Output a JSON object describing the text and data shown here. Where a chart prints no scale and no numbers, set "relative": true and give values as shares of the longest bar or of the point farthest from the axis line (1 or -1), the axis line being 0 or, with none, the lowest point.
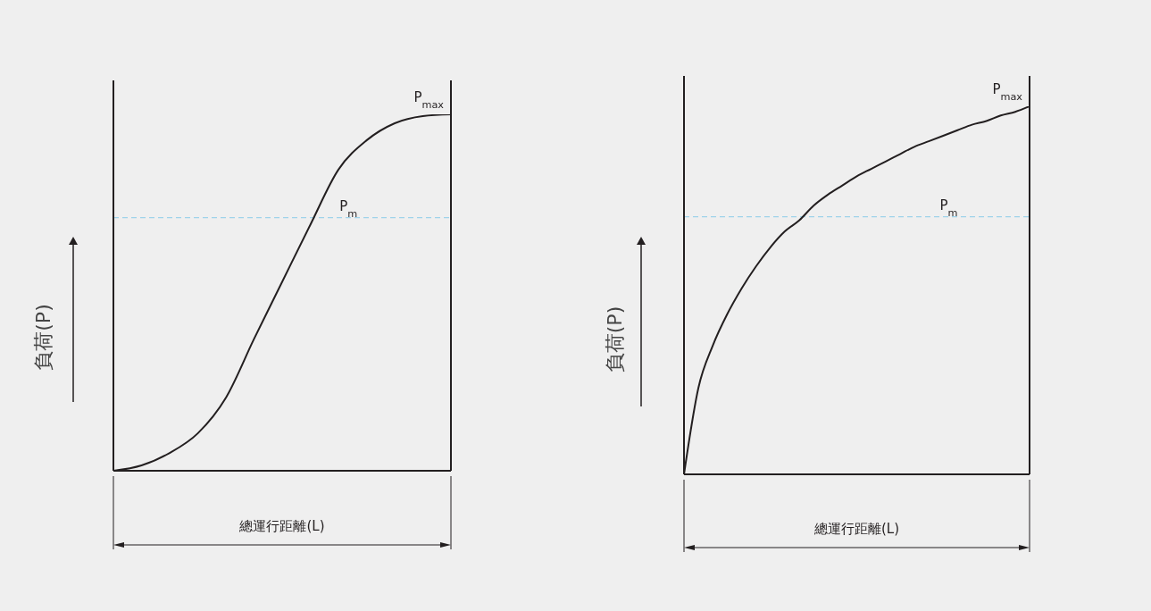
{
  "chart_data": [
    {
      "type": "line",
      "relative": true,
      "xlabel": "總運行距離(L)",
      "ylabel": "負荷(P)",
      "categories": [
        null,
        null,
        null,
        null,
        null,
        null,
        null,
        null,
        null,
        null,
        null,
        null,
        null
      ],
      "series": [
        {
          "color": "#231f20",
          "values": [
            0,
            0.015,
            0.05,
            0.105,
            0.205,
            0.37,
            0.53,
            0.69,
            0.845,
            0.927,
            0.975,
            0.995,
            1
          ]
        }
      ],
      "ref_lines": [
        {
          "axis": "y",
          "value": 0.71,
          "label": "P$_{m}$",
          "color": "#9fd3ea",
          "line_style": "dashed"
        }
      ],
      "annotations": [
        "P$_{max}$"
      ]
    },
    {
      "type": "line",
      "relative": true,
      "xlabel": "總運行距離(L)",
      "ylabel": "負荷(P)",
      "categories": [
        null,
        null,
        null,
        null,
        null,
        null,
        null,
        null,
        null,
        null,
        null,
        null,
        null,
        null,
        null,
        null,
        null,
        null,
        null,
        null,
        null,
        null,
        null,
        null,
        null
      ],
      "series": [
        {
          "color": "#231f20",
          "values": [
            0,
            0.235,
            0.35,
            0.435,
            0.505,
            0.565,
            0.617,
            0.66,
            0.69,
            0.73,
            0.76,
            0.785,
            0.81,
            0.83,
            0.85,
            0.87,
            0.89,
            0.905,
            0.92,
            0.935,
            0.95,
            0.96,
            0.975,
            0.985,
            1
          ]
        }
      ],
      "ref_lines": [
        {
          "axis": "y",
          "value": 0.7,
          "label": "P$_{m}$",
          "color": "#9fd3ea",
          "line_style": "dashed"
        }
      ],
      "annotations": [
        "P$_{max}$"
      ]
    }
  ]
}
